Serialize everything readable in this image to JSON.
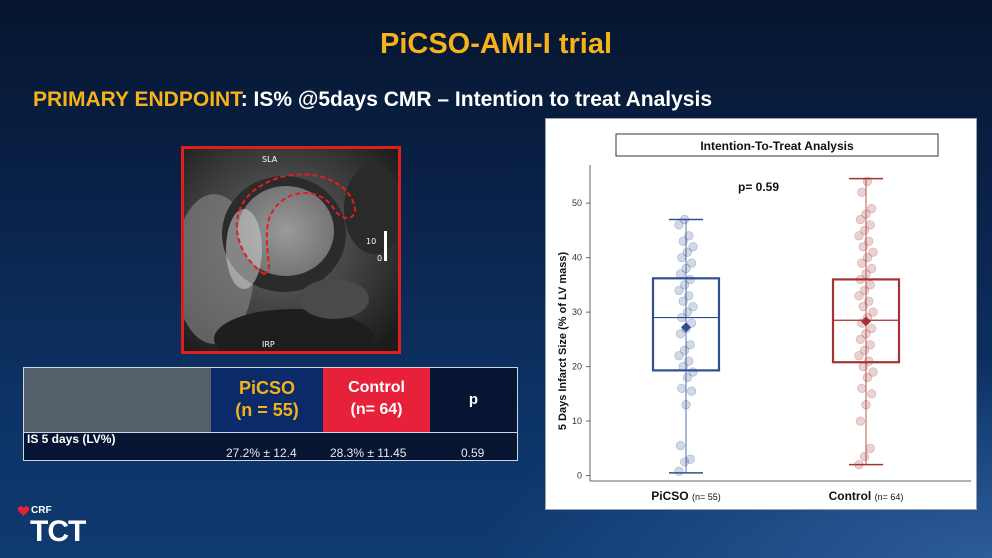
{
  "slide": {
    "title": "PiCSO-AMI-I trial",
    "subtitle_accent": "PRIMARY ENDPOINT",
    "subtitle_rest": ": IS% @5days CMR – Intention to treat Analysis"
  },
  "mri": {
    "labels": {
      "top": "SLA",
      "bottom": "IRP",
      "right_num_top": "10",
      "right_num_bottom": "0"
    },
    "border_color": "#e01e1e"
  },
  "table": {
    "header": {
      "picso_line1": "PiCSO",
      "picso_line2": "(n = 55)",
      "control_line1": "Control",
      "control_line2": "(n= 64)",
      "p": "p"
    },
    "row": {
      "label": "IS 5 days (LV%)",
      "picso": "27.2% ± 12.4",
      "control": "28.3% ± 11.45",
      "p": "0.59"
    }
  },
  "chart_data": {
    "type": "box",
    "title": "Intention-To-Treat Analysis",
    "ylabel": "5 Days Infarct Size (% of LV mass)",
    "ylim": [
      -1,
      57
    ],
    "yticks": [
      0,
      10,
      20,
      30,
      40,
      50
    ],
    "annotation": "p= 0.59",
    "grid": false,
    "categories": [
      {
        "name": "PiCSO",
        "n_label": "(n= 55)"
      },
      {
        "name": "Control",
        "n_label": "(n= 64)"
      }
    ],
    "series": [
      {
        "color": "#2f4f8f",
        "box": {
          "min": 0.5,
          "q1": 19.3,
          "median": 29,
          "q3": 36.2,
          "max": 47,
          "mean": 27.2
        },
        "points": [
          0.8,
          2.5,
          3.0,
          5.5,
          13,
          15.5,
          16,
          18,
          19,
          20,
          21,
          22,
          23,
          24,
          26,
          27,
          28,
          29,
          30,
          31,
          32,
          33,
          34,
          35,
          36,
          37,
          38,
          39,
          40,
          41,
          42,
          43,
          44,
          46,
          47
        ]
      },
      {
        "color": "#a63232",
        "box": {
          "min": 2,
          "q1": 20.8,
          "median": 28.5,
          "q3": 36,
          "max": 54.5,
          "mean": 28.3
        },
        "points": [
          2,
          3.5,
          5,
          10,
          13,
          15,
          16,
          18,
          19,
          20,
          21,
          22,
          23,
          24,
          25,
          26,
          27,
          28,
          29,
          30,
          31,
          32,
          33,
          34,
          35,
          36,
          37,
          38,
          39,
          40,
          41,
          42,
          43,
          44,
          45,
          46,
          47,
          48,
          49,
          52,
          54
        ]
      }
    ]
  },
  "logo": {
    "crf": "CRF",
    "tct": "TCT"
  }
}
